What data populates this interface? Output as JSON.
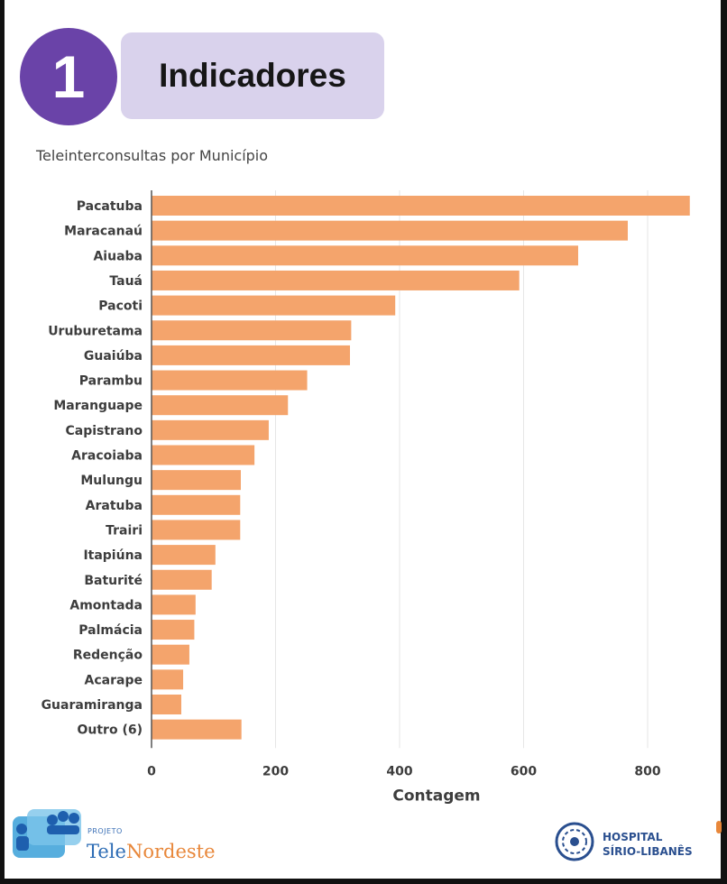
{
  "header": {
    "number": "1",
    "title": "Indicadores"
  },
  "chart_data": {
    "type": "bar",
    "orientation": "horizontal",
    "title": "Teleinterconsultas por Município",
    "xlabel": "Contagem",
    "ylabel": "",
    "xlim": [
      0,
      880
    ],
    "xticks": [
      0,
      200,
      400,
      600,
      800
    ],
    "grid": true,
    "bar_color": "#f4a46c",
    "categories": [
      "Pacatuba",
      "Maracanaú",
      "Aiuaba",
      "Tauá",
      "Pacoti",
      "Uruburetama",
      "Guaiúba",
      "Parambu",
      "Maranguape",
      "Capistrano",
      "Aracoiaba",
      "Mulungu",
      "Aratuba",
      "Trairi",
      "Itapiúna",
      "Baturité",
      "Amontada",
      "Palmácia",
      "Redenção",
      "Acarape",
      "Guaramiranga",
      "Outro (6)"
    ],
    "values": [
      868,
      768,
      688,
      593,
      393,
      322,
      320,
      251,
      220,
      189,
      166,
      144,
      143,
      143,
      103,
      97,
      71,
      69,
      61,
      51,
      48,
      145
    ]
  },
  "footer": {
    "projeto": "PROJETO",
    "tele_a": "Tele",
    "tele_b": "Nordeste",
    "hospital": "HOSPITAL",
    "sirio": "SÍRIO-LIBANÊS"
  },
  "colors": {
    "badge": "#6a43a8",
    "header_bg": "#d9d2ec",
    "bar": "#f4a46c"
  }
}
